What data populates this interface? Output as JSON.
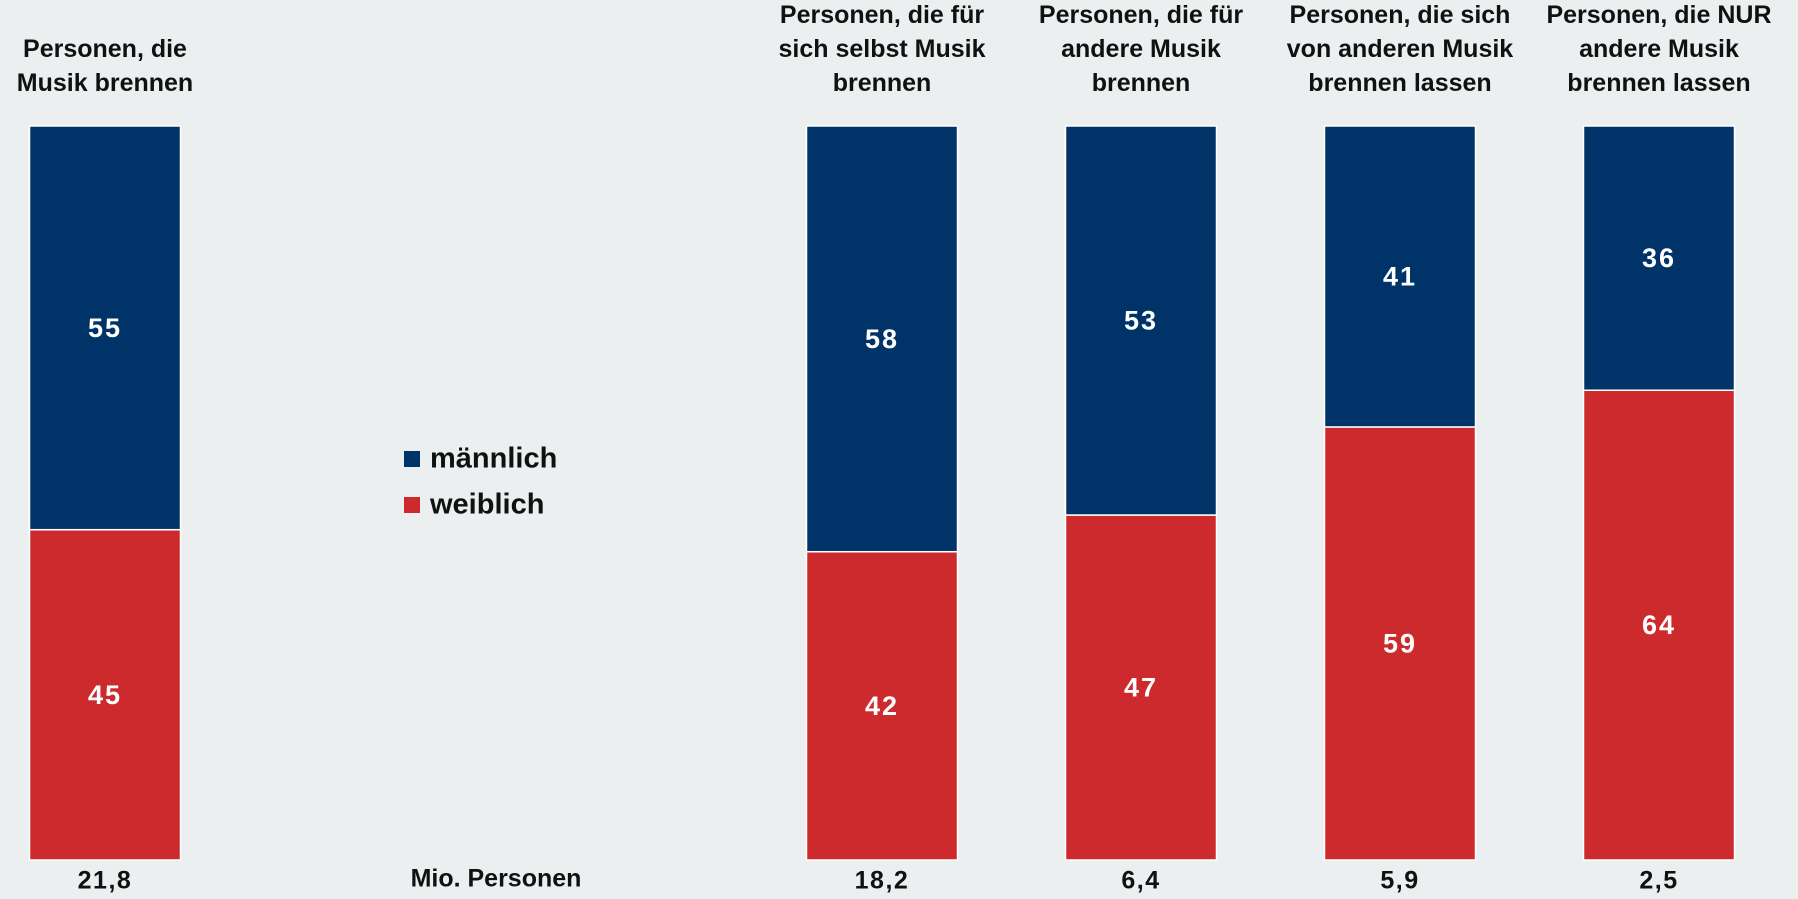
{
  "chart_data": {
    "type": "stacked_bar_100",
    "categories": [
      "Personen, die Musik brennen",
      "Personen, die für sich selbst Musik brennen",
      "Personen, die für andere Musik brennen",
      "Personen, die sich von anderen Musik brennen lassen",
      "Personen, die NUR andere Musik brennen lassen"
    ],
    "series": [
      {
        "name": "männlich",
        "color": "#003468",
        "values": [
          55,
          58,
          53,
          41,
          36
        ]
      },
      {
        "name": "weiblich",
        "color": "#cc2a2c",
        "values": [
          45,
          42,
          47,
          59,
          64
        ]
      }
    ],
    "ylim": [
      0,
      100
    ],
    "totals": [
      21.8,
      18.2,
      6.4,
      5.9,
      2.5
    ],
    "total_labels": [
      "21,8",
      "18,2",
      "6,4",
      "5,9",
      "2,5"
    ],
    "totals_unit": "Mio. Personen"
  }
}
